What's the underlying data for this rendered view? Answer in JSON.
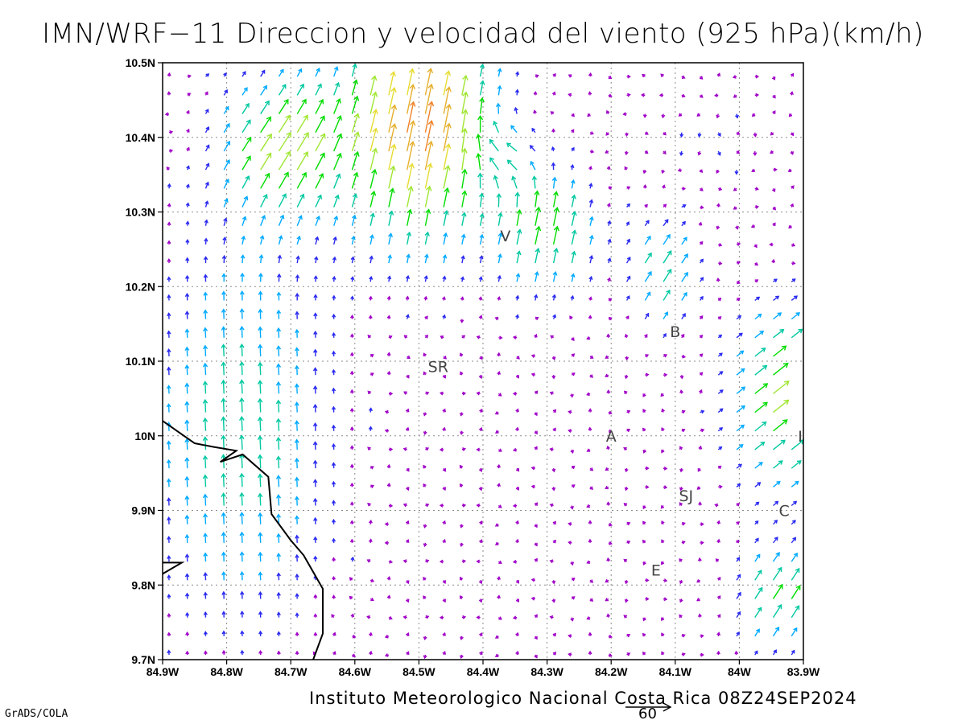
{
  "title": "IMN/WRF−11 Direccion y velocidad del viento (925 hPa)(km/h)",
  "footer": "Instituto Meteorologico Nacional Costa Rica 08Z24SEP2024",
  "brand": "GrADS/COLA",
  "reference_vector": {
    "label": "60",
    "speed_kmh": 60
  },
  "map": {
    "lon_range": [
      -84.9,
      -83.9
    ],
    "lat_range": [
      9.7,
      10.5
    ],
    "lon_ticks": [
      {
        "value": -84.9,
        "label": "84.9W"
      },
      {
        "value": -84.8,
        "label": "84.8W"
      },
      {
        "value": -84.7,
        "label": "84.7W"
      },
      {
        "value": -84.6,
        "label": "84.6W"
      },
      {
        "value": -84.5,
        "label": "84.5W"
      },
      {
        "value": -84.4,
        "label": "84.4W"
      },
      {
        "value": -84.3,
        "label": "84.3W"
      },
      {
        "value": -84.2,
        "label": "84.2W"
      },
      {
        "value": -84.1,
        "label": "84.1W"
      },
      {
        "value": -84.0,
        "label": "84W"
      },
      {
        "value": -83.9,
        "label": "83.9W"
      }
    ],
    "lat_ticks": [
      {
        "value": 9.7,
        "label": "9.7N"
      },
      {
        "value": 9.8,
        "label": "9.8N"
      },
      {
        "value": 9.9,
        "label": "9.9N"
      },
      {
        "value": 10.0,
        "label": "10N"
      },
      {
        "value": 10.1,
        "label": "10.1N"
      },
      {
        "value": 10.2,
        "label": "10.2N"
      },
      {
        "value": 10.3,
        "label": "10.3N"
      },
      {
        "value": 10.4,
        "label": "10.4N"
      },
      {
        "value": 10.5,
        "label": "10.5N"
      }
    ],
    "grid": "dotted",
    "stations": [
      {
        "label": "SR",
        "lon": -84.47,
        "lat": 10.093
      },
      {
        "label": "V",
        "lon": -84.365,
        "lat": 10.268
      },
      {
        "label": "B",
        "lon": -84.1,
        "lat": 10.14
      },
      {
        "label": "A",
        "lon": -84.2,
        "lat": 10.0
      },
      {
        "label": "I",
        "lon": -83.905,
        "lat": 10.0
      },
      {
        "label": "SJ",
        "lon": -84.083,
        "lat": 9.92
      },
      {
        "label": "C",
        "lon": -83.93,
        "lat": 9.9
      },
      {
        "label": "E",
        "lon": -84.13,
        "lat": 9.82
      }
    ],
    "coastline": [
      [
        [
          -84.9,
          10.02
        ],
        [
          -84.85,
          9.99
        ],
        [
          -84.82,
          9.985
        ],
        [
          -84.785,
          9.98
        ],
        [
          -84.81,
          9.965
        ],
        [
          -84.775,
          9.975
        ],
        [
          -84.735,
          9.945
        ],
        [
          -84.73,
          9.895
        ],
        [
          -84.7,
          9.86
        ],
        [
          -84.68,
          9.84
        ],
        [
          -84.65,
          9.795
        ],
        [
          -84.65,
          9.735
        ],
        [
          -84.665,
          9.7
        ]
      ],
      [
        [
          -84.9,
          9.815
        ],
        [
          -84.87,
          9.83
        ],
        [
          -84.9,
          9.83
        ]
      ]
    ],
    "speed_colors": [
      "#a000c8",
      "#2a2af0",
      "#00aaff",
      "#00c8a0",
      "#00dc00",
      "#a0e632",
      "#e6dc32",
      "#e6af2d",
      "#f08228",
      "#fa3c3c"
    ]
  },
  "wind_field": {
    "note_units": "km/h",
    "regimes": [
      {
        "region": "west-lowlands",
        "direction": "from S",
        "speed_kmh": [
          15,
          25
        ]
      },
      {
        "region": "north-caribbean-slope",
        "direction": "from SSW",
        "speed_kmh": [
          25,
          55
        ]
      },
      {
        "region": "central-valley",
        "direction": "variable",
        "speed_kmh": [
          3,
          8
        ]
      },
      {
        "region": "northeast",
        "direction": "from N",
        "speed_kmh": [
          3,
          6
        ]
      },
      {
        "region": "east",
        "direction": "from SW",
        "speed_kmh": [
          20,
          35
        ]
      }
    ]
  }
}
